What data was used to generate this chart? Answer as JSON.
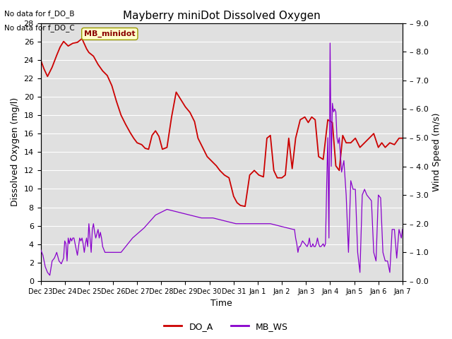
{
  "title": "Mayberry miniDot Dissolved Oxygen",
  "xlabel": "Time",
  "ylabel_left": "Dissolved Oxygen (mg/l)",
  "ylabel_right": "Wind Speed (m/s)",
  "text_no_data": [
    "No data for f_DO_B",
    "No data for f_DO_C"
  ],
  "legend_box_label": "MB_minidot",
  "ylim_left": [
    0,
    28
  ],
  "ylim_right": [
    0.0,
    9.0
  ],
  "yticks_left": [
    0,
    2,
    4,
    6,
    8,
    10,
    12,
    14,
    16,
    18,
    20,
    22,
    24,
    26,
    28
  ],
  "yticks_right": [
    0.0,
    1.0,
    2.0,
    3.0,
    4.0,
    5.0,
    6.0,
    7.0,
    8.0,
    9.0
  ],
  "do_color": "#cc0000",
  "ws_color": "#8800cc",
  "bg_color": "#e0e0e0",
  "legend_do": "DO_A",
  "legend_ws": "MB_WS",
  "xtick_labels": [
    "Dec 23",
    "Dec 24",
    "Dec 25",
    "Dec 26",
    "Dec 27",
    "Dec 28",
    "Dec 29",
    "Dec 30",
    "Dec 31",
    "Jan 1",
    "Jan 2",
    "Jan 3",
    "Jan 4",
    "Jan 5",
    "Jan 6",
    "Jan 7"
  ],
  "DO_A_x": [
    0,
    0.15,
    0.3,
    0.5,
    0.7,
    0.85,
    1.0,
    1.2,
    1.4,
    1.6,
    1.8,
    2.0,
    2.1,
    2.3,
    2.5,
    2.7,
    2.9,
    3.1,
    3.3,
    3.5,
    3.7,
    3.9,
    4.05,
    4.2,
    4.4,
    4.55,
    4.7,
    4.85,
    5.0,
    5.15,
    5.3,
    5.5,
    5.7,
    5.9,
    6.1,
    6.3,
    6.5,
    6.7,
    6.85,
    7.05,
    7.25,
    7.45,
    7.65,
    7.8,
    8.0,
    8.2,
    8.4,
    8.55,
    8.7,
    8.9,
    9.1,
    9.3,
    9.5,
    9.7,
    9.85,
    10.0,
    10.15,
    10.3,
    10.5,
    10.65,
    10.8,
    10.95,
    11.1,
    11.3,
    11.5,
    11.65,
    11.8,
    11.95,
    12.1,
    12.3,
    12.5,
    12.7,
    12.85,
    13.0,
    13.15,
    13.3,
    13.5,
    13.7,
    13.9,
    14.1,
    14.3,
    14.5,
    14.7,
    14.85,
    15.0,
    15.2,
    15.4,
    15.6,
    15.75
  ],
  "DO_A_y": [
    24.0,
    23.0,
    22.2,
    23.2,
    24.5,
    25.4,
    26.0,
    25.5,
    25.8,
    25.9,
    26.3,
    25.2,
    24.8,
    24.4,
    23.5,
    22.8,
    22.3,
    21.2,
    19.5,
    18.0,
    17.0,
    16.1,
    15.5,
    15.0,
    14.8,
    14.4,
    14.3,
    15.8,
    16.3,
    15.7,
    14.3,
    14.5,
    17.8,
    20.5,
    19.7,
    18.9,
    18.3,
    17.3,
    15.5,
    14.5,
    13.5,
    13.0,
    12.5,
    12.0,
    11.5,
    11.2,
    9.2,
    8.5,
    8.2,
    8.1,
    11.5,
    12.0,
    11.5,
    11.3,
    15.5,
    15.8,
    12.0,
    11.2,
    11.2,
    11.5,
    15.5,
    12.2,
    15.5,
    17.5,
    17.8,
    17.2,
    17.8,
    17.5,
    13.5,
    13.2,
    17.5,
    17.2,
    12.5,
    12.0,
    15.8,
    15.0,
    15.0,
    15.5,
    14.5,
    15.0,
    15.5,
    16.0,
    14.5,
    15.0,
    14.5,
    15.0,
    14.8,
    15.5,
    15.5
  ],
  "MB_WS_x": [
    0,
    0.1,
    0.2,
    0.3,
    0.4,
    0.5,
    0.6,
    0.7,
    0.8,
    0.9,
    1.0,
    1.05,
    1.1,
    1.15,
    1.2,
    1.25,
    1.3,
    1.35,
    1.4,
    1.45,
    1.5,
    1.6,
    1.7,
    1.75,
    1.8,
    1.85,
    1.9,
    1.95,
    2.0,
    2.05,
    2.1,
    2.15,
    2.2,
    2.25,
    2.3,
    2.35,
    2.4,
    2.5,
    2.55,
    2.6,
    2.65,
    2.7,
    2.8,
    2.85,
    3.0,
    3.5,
    4.0,
    4.5,
    5.0,
    5.5,
    6.0,
    6.5,
    7.0,
    7.5,
    8.0,
    8.5,
    9.0,
    9.5,
    10.0,
    10.5,
    11.0,
    11.05,
    11.1,
    11.15,
    11.2,
    11.25,
    11.3,
    11.4,
    11.5,
    11.6,
    11.65,
    11.7,
    11.75,
    11.8,
    11.85,
    11.9,
    11.95,
    12.0,
    12.05,
    12.1,
    12.15,
    12.2,
    12.3,
    12.35,
    12.4,
    12.45,
    12.5,
    12.55,
    12.6,
    12.65,
    12.7,
    12.75,
    12.8,
    12.85,
    12.9,
    12.95,
    13.0,
    13.1,
    13.2,
    13.3,
    13.4,
    13.5,
    13.6,
    13.7,
    13.8,
    13.9,
    14.0,
    14.1,
    14.2,
    14.3,
    14.4,
    14.5,
    14.6,
    14.7,
    14.8,
    14.9,
    15.0,
    15.1,
    15.2,
    15.3,
    15.4,
    15.5,
    15.6,
    15.7,
    15.75
  ],
  "MB_WS_y": [
    1.1,
    0.9,
    0.5,
    0.3,
    0.2,
    0.7,
    0.8,
    1.0,
    0.7,
    0.6,
    0.8,
    1.4,
    1.3,
    0.7,
    1.5,
    1.3,
    1.5,
    1.4,
    1.5,
    1.5,
    1.3,
    0.9,
    1.5,
    1.4,
    1.5,
    1.3,
    1.0,
    1.3,
    1.5,
    1.2,
    2.0,
    1.5,
    1.0,
    1.8,
    2.0,
    1.7,
    1.5,
    1.8,
    1.5,
    1.7,
    1.5,
    1.2,
    1.0,
    1.0,
    1.0,
    1.0,
    1.5,
    1.85,
    2.3,
    2.5,
    2.4,
    2.3,
    2.2,
    2.2,
    2.1,
    2.0,
    2.0,
    2.0,
    2.0,
    1.9,
    1.8,
    1.8,
    1.5,
    1.3,
    1.0,
    1.2,
    1.2,
    1.4,
    1.3,
    1.2,
    1.3,
    1.5,
    1.2,
    1.2,
    1.3,
    1.2,
    1.2,
    1.3,
    1.5,
    1.3,
    1.2,
    1.2,
    1.3,
    1.2,
    1.3,
    3.3,
    5.0,
    1.5,
    8.3,
    4.0,
    6.2,
    5.9,
    6.0,
    5.9,
    5.0,
    4.8,
    5.0,
    3.8,
    4.2,
    3.0,
    1.0,
    3.5,
    3.2,
    3.2,
    1.0,
    0.3,
    3.0,
    3.2,
    3.0,
    2.9,
    2.8,
    1.0,
    0.7,
    3.0,
    2.9,
    1.0,
    0.7,
    0.7,
    0.3,
    1.8,
    1.8,
    0.8,
    1.8,
    1.5,
    1.8
  ]
}
